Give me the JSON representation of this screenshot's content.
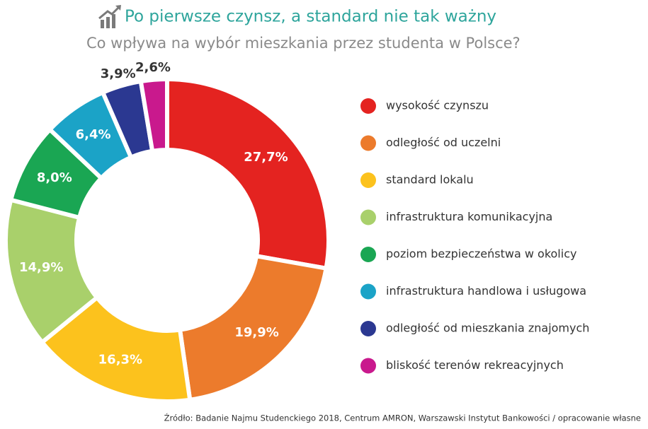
{
  "chart_data": {
    "type": "donut",
    "title": "Po pierwsze czynsz, a standard nie tak ważny",
    "subtitle": "Co wpływa na wybór mieszkania przez studenta w Polsce?",
    "source": "Źródło: Badanie Najmu Studenckiego 2018, Centrum AMRON, Warszawski Instytut Bankowości / opracowanie własne",
    "categories": [
      "wysokość czynszu",
      "odległość od uczelni",
      "standard lokalu",
      "infrastruktura komunikacyjna",
      "poziom bezpieczeństwa w okolicy",
      "infrastruktura handlowa i usługowa",
      "odległość od mieszkania znajomych",
      "bliskość terenów rekreacyjnych"
    ],
    "values": [
      27.7,
      19.9,
      16.3,
      14.9,
      8.0,
      6.4,
      3.9,
      2.6
    ],
    "value_labels": [
      "27,7%",
      "19,9%",
      "16,3%",
      "14,9%",
      "8,0%",
      "6,4%",
      "3,9%",
      "2,6%"
    ],
    "colors": [
      "#e42320",
      "#ec7b2c",
      "#fcc21d",
      "#a9d06b",
      "#1aa653",
      "#1ba3c7",
      "#2b3891",
      "#c9198d"
    ],
    "legend": "right"
  }
}
